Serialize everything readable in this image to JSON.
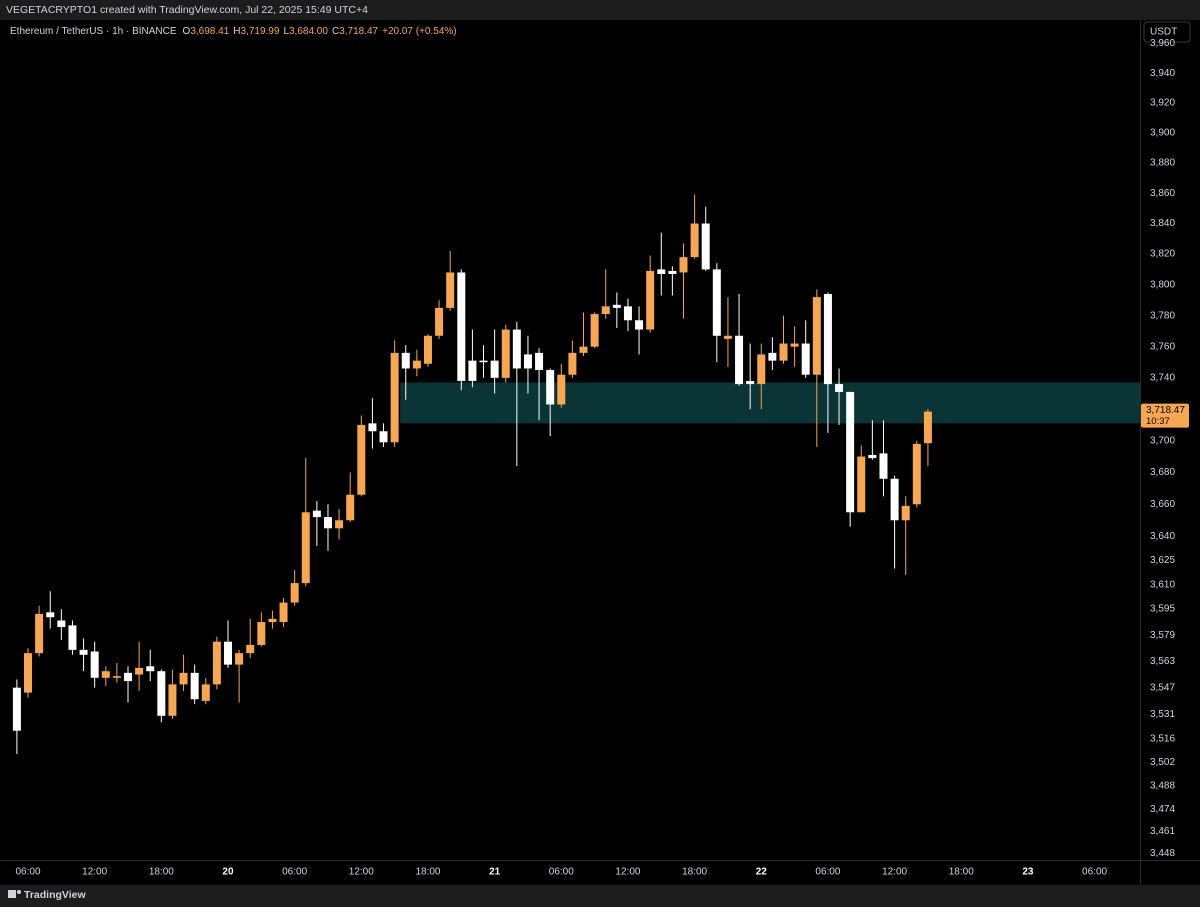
{
  "page": {
    "attribution": "VEGETACRYPTO1 created with TradingView.com, Jul 22, 2025 15:49 UTC+4",
    "symbol": "Ethereum / TetherUS · 1h · BINANCE",
    "fields": [
      {
        "key": "O",
        "value": "3,698.41"
      },
      {
        "key": "H",
        "value": "3,719.99"
      },
      {
        "key": "L",
        "value": "3,684.00"
      },
      {
        "key": "C",
        "value": "3,718.47"
      }
    ],
    "change": "+20.07 (+0.54%)",
    "currency": "USDT",
    "last_price_label": "3,718.47",
    "countdown": "10:37",
    "brand": "TradingView"
  },
  "chart_data": {
    "type": "candlestick",
    "log": true,
    "grid": false,
    "up_color": "#f7a74f",
    "down_color": "#ffffff",
    "ylim": [
      3444,
      3976
    ],
    "yticks": [
      {
        "value": 3960,
        "label": "3,960"
      },
      {
        "value": 3940,
        "label": "3,940"
      },
      {
        "value": 3920,
        "label": "3,920"
      },
      {
        "value": 3900,
        "label": "3,900"
      },
      {
        "value": 3880,
        "label": "3,880"
      },
      {
        "value": 3860,
        "label": "3,860"
      },
      {
        "value": 3840,
        "label": "3,840"
      },
      {
        "value": 3820,
        "label": "3,820"
      },
      {
        "value": 3800,
        "label": "3,800"
      },
      {
        "value": 3780,
        "label": "3,780"
      },
      {
        "value": 3760,
        "label": "3,760"
      },
      {
        "value": 3740,
        "label": "3,740"
      },
      {
        "value": 3700,
        "label": "3,700"
      },
      {
        "value": 3680,
        "label": "3,680"
      },
      {
        "value": 3660,
        "label": "3,660"
      },
      {
        "value": 3640,
        "label": "3,640"
      },
      {
        "value": 3625,
        "label": "3,625"
      },
      {
        "value": 3610,
        "label": "3,610"
      },
      {
        "value": 3595,
        "label": "3,595"
      },
      {
        "value": 3579,
        "label": "3,579"
      },
      {
        "value": 3563,
        "label": "3,563"
      },
      {
        "value": 3547,
        "label": "3,547"
      },
      {
        "value": 3531,
        "label": "3,531"
      },
      {
        "value": 3516,
        "label": "3,516"
      },
      {
        "value": 3502,
        "label": "3,502"
      },
      {
        "value": 3488,
        "label": "3,488"
      },
      {
        "value": 3474,
        "label": "3,474"
      },
      {
        "value": 3461,
        "label": "3,461"
      },
      {
        "value": 3448,
        "label": "3,448"
      }
    ],
    "categories": [
      null,
      "06:00",
      null,
      null,
      null,
      null,
      null,
      "12:00",
      null,
      null,
      null,
      null,
      null,
      "18:00",
      null,
      null,
      null,
      null,
      null,
      "20",
      null,
      null,
      null,
      null,
      null,
      "06:00",
      null,
      null,
      null,
      null,
      null,
      "12:00",
      null,
      null,
      null,
      null,
      null,
      "18:00",
      null,
      null,
      null,
      null,
      null,
      "21",
      null,
      null,
      null,
      null,
      null,
      "06:00",
      null,
      null,
      null,
      null,
      null,
      "12:00",
      null,
      null,
      null,
      null,
      null,
      "18:00",
      null,
      null,
      null,
      null,
      null,
      "22",
      null,
      null,
      null,
      null,
      null,
      "06:00",
      null,
      null,
      null,
      null,
      null,
      "12:00",
      null,
      null,
      null,
      null,
      null,
      "18:00",
      null,
      null,
      null,
      null,
      null,
      "23",
      null,
      null,
      null,
      null,
      null,
      "06:00",
      null,
      null,
      null,
      null
    ],
    "open": [
      3547,
      3544,
      3568,
      3593,
      3588,
      3585,
      3570,
      3569,
      3553,
      3553,
      3556,
      3555,
      3560,
      3557,
      3530,
      3549,
      3556,
      3539,
      3549,
      3575,
      3561,
      3568,
      3573,
      3587,
      3587,
      3599,
      3611,
      3656,
      3652,
      3645,
      3650,
      3666,
      3711,
      3706,
      3699,
      3756,
      3746,
      3749,
      3767,
      3785,
      3808,
      3751,
      3751,
      3751,
      3740,
      3771,
      3755,
      3756,
      3745,
      3723,
      3742,
      3756,
      3760,
      3781,
      3787,
      3786,
      3777,
      3771,
      3810,
      3809,
      3808,
      3818,
      3840,
      3810,
      3765,
      3767,
      3738,
      3736,
      3756,
      3751,
      3760,
      3762,
      3742,
      3794,
      3736,
      3731,
      3655,
      3691,
      3692,
      3676,
      3650,
      3660,
      3698.41,
      null,
      null,
      null,
      null,
      null,
      null,
      null,
      null,
      null,
      null,
      null,
      null,
      null,
      null,
      null,
      null,
      null,
      null,
      null
    ],
    "high": [
      3552,
      3571,
      3597,
      3606,
      3595,
      3588,
      3577,
      3575,
      3560,
      3562,
      3560,
      3575,
      3570,
      3558,
      3558,
      3567,
      3561,
      3553,
      3578,
      3588,
      3570,
      3589,
      3593,
      3594,
      3602,
      3619,
      3689,
      3662,
      3660,
      3657,
      3680,
      3716,
      3727,
      3711,
      3764,
      3761,
      3758,
      3768,
      3790,
      3822,
      3810,
      3771,
      3761,
      3771,
      3774,
      3776,
      3767,
      3759,
      3746,
      3749,
      3764,
      3782,
      3782,
      3810,
      3795,
      3791,
      3786,
      3819,
      3834,
      3812,
      3827,
      3859,
      3851,
      3814,
      3792,
      3794,
      3762,
      3762,
      3766,
      3780,
      3773,
      3777,
      3797,
      3795,
      3746,
      3731,
      3697,
      3713,
      3713,
      3678,
      3665,
      3700,
      3719.99,
      null,
      null,
      null,
      null,
      null,
      null,
      null,
      null,
      null,
      null,
      null,
      null,
      null,
      null,
      null,
      null,
      null,
      null,
      null
    ],
    "low": [
      3507,
      3541,
      3566,
      3583,
      3576,
      3567,
      3557,
      3547,
      3548,
      3550,
      3538,
      3545,
      3551,
      3526,
      3528,
      3545,
      3537,
      3537,
      3546,
      3559,
      3538,
      3565,
      3572,
      3583,
      3584,
      3597,
      3609,
      3634,
      3631,
      3638,
      3649,
      3665,
      3695,
      3696,
      3696,
      3726,
      3741,
      3747,
      3765,
      3783,
      3732,
      3734,
      3740,
      3730,
      3737,
      3684,
      3730,
      3713,
      3703,
      3721,
      3740,
      3754,
      3759,
      3778,
      3772,
      3770,
      3755,
      3769,
      3793,
      3793,
      3778,
      3817,
      3809,
      3750,
      3747,
      3735,
      3720,
      3720,
      3745,
      3749,
      3747,
      3740,
      3696,
      3705,
      3710,
      3646,
      3655,
      3688,
      3665,
      3620,
      3616,
      3658,
      3684,
      null,
      null,
      null,
      null,
      null,
      null,
      null,
      null,
      null,
      null,
      null,
      null,
      null,
      null,
      null,
      null,
      null,
      null,
      null
    ],
    "close": [
      3521,
      3568,
      3592,
      3590,
      3584,
      3570,
      3567,
      3553,
      3557,
      3554,
      3551,
      3559,
      3557,
      3530,
      3549,
      3556,
      3540,
      3549,
      3575,
      3561,
      3568,
      3573,
      3587,
      3589,
      3599,
      3611,
      3655,
      3652,
      3645,
      3650,
      3666,
      3710,
      3706,
      3699,
      3756,
      3746,
      3751,
      3767,
      3785,
      3808,
      3738,
      3738,
      3750,
      3740,
      3771,
      3746,
      3746,
      3745,
      3723,
      3742,
      3756,
      3760,
      3781,
      3786,
      3785,
      3777,
      3771,
      3809,
      3807,
      3807,
      3818,
      3840,
      3810,
      3767,
      3767,
      3736,
      3736,
      3755,
      3751,
      3762,
      3762,
      3742,
      3792,
      3736,
      3731,
      3655,
      3690,
      3689,
      3676,
      3650,
      3659,
      3698,
      3718.47,
      null,
      null,
      null,
      null,
      null,
      null,
      null,
      null,
      null,
      null,
      null,
      null,
      null,
      null,
      null,
      null,
      null,
      null,
      null
    ],
    "zones": [
      {
        "start": 35,
        "low": 3711,
        "high": 3737,
        "color": "#0b3437"
      }
    ]
  }
}
